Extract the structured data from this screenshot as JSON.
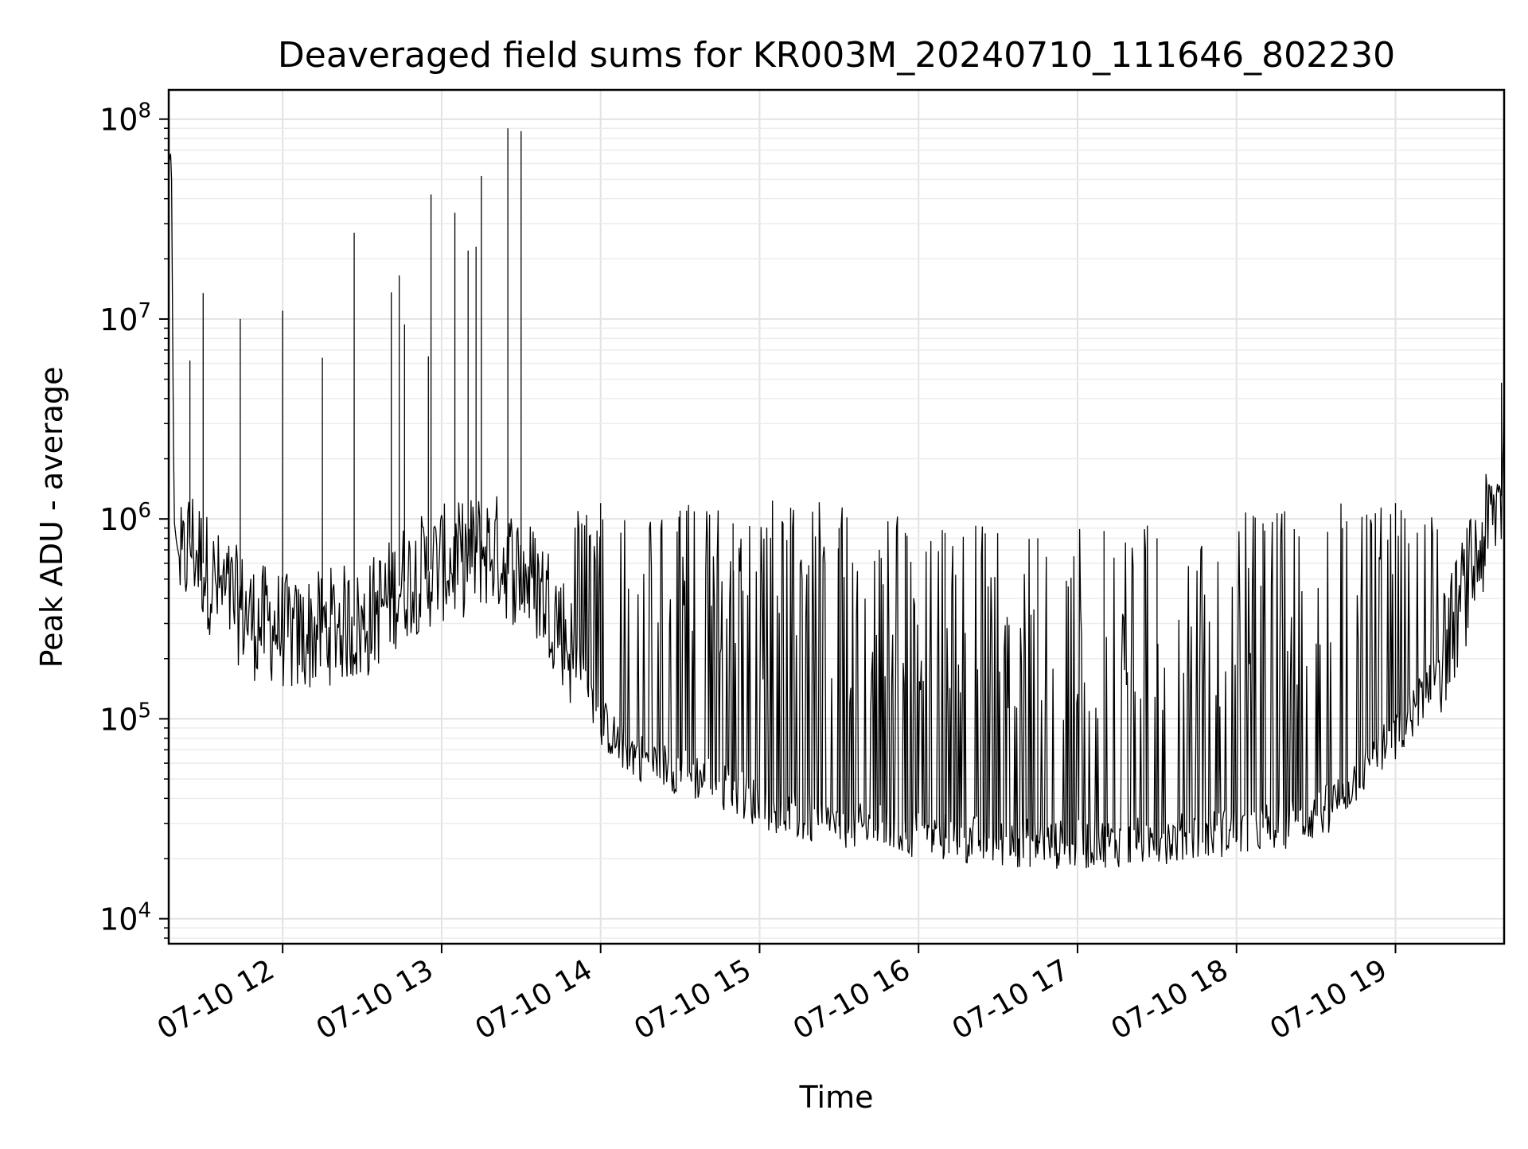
{
  "chart_data": {
    "type": "line",
    "title": "Deaveraged field sums for KR003M_20240710_111646_802230",
    "xlabel": "Time",
    "ylabel": "Peak ADU - average",
    "yscale": "log",
    "ylim": [
      7500,
      140000000
    ],
    "xlim": [
      "2024-07-10 11:17",
      "2024-07-10 19:41"
    ],
    "grid": true,
    "x_ticks": [
      {
        "x": "2024-07-10 12:00",
        "label": "07-10 12"
      },
      {
        "x": "2024-07-10 13:00",
        "label": "07-10 13"
      },
      {
        "x": "2024-07-10 14:00",
        "label": "07-10 14"
      },
      {
        "x": "2024-07-10 15:00",
        "label": "07-10 15"
      },
      {
        "x": "2024-07-10 16:00",
        "label": "07-10 16"
      },
      {
        "x": "2024-07-10 17:00",
        "label": "07-10 17"
      },
      {
        "x": "2024-07-10 18:00",
        "label": "07-10 18"
      },
      {
        "x": "2024-07-10 19:00",
        "label": "07-10 19"
      }
    ],
    "y_ticks": [
      {
        "y": 10000,
        "mantissa": "10",
        "exponent": "4"
      },
      {
        "y": 100000,
        "mantissa": "10",
        "exponent": "5"
      },
      {
        "y": 1000000,
        "mantissa": "10",
        "exponent": "6"
      },
      {
        "y": 10000000,
        "mantissa": "10",
        "exponent": "7"
      },
      {
        "y": 100000000,
        "mantissa": "10",
        "exponent": "8"
      }
    ],
    "series": [
      {
        "color": "#000000",
        "x": [
          "2024-07-10 11:17",
          "2024-07-10 11:18",
          "2024-07-10 11:19",
          "2024-07-10 11:20",
          "2024-07-10 11:22",
          "2024-07-10 11:25",
          "2024-07-10 11:30",
          "2024-07-10 11:35",
          "2024-07-10 11:40",
          "2024-07-10 11:45",
          "2024-07-10 11:50",
          "2024-07-10 11:55",
          "2024-07-10 12:00",
          "2024-07-10 12:05",
          "2024-07-10 12:10",
          "2024-07-10 12:15",
          "2024-07-10 12:20",
          "2024-07-10 12:25",
          "2024-07-10 12:30",
          "2024-07-10 12:35",
          "2024-07-10 12:40",
          "2024-07-10 12:45",
          "2024-07-10 12:50",
          "2024-07-10 12:55",
          "2024-07-10 13:00",
          "2024-07-10 13:05",
          "2024-07-10 13:10",
          "2024-07-10 13:15",
          "2024-07-10 13:20",
          "2024-07-10 13:25",
          "2024-07-10 13:30",
          "2024-07-10 13:35",
          "2024-07-10 13:40",
          "2024-07-10 13:45",
          "2024-07-10 13:50",
          "2024-07-10 13:55",
          "2024-07-10 14:00",
          "2024-07-10 14:05",
          "2024-07-10 14:10",
          "2024-07-10 14:15",
          "2024-07-10 14:20",
          "2024-07-10 14:25",
          "2024-07-10 14:30",
          "2024-07-10 14:35",
          "2024-07-10 14:40",
          "2024-07-10 14:45",
          "2024-07-10 14:50",
          "2024-07-10 14:55",
          "2024-07-10 15:00",
          "2024-07-10 15:05",
          "2024-07-10 15:10",
          "2024-07-10 15:15",
          "2024-07-10 15:20",
          "2024-07-10 15:25",
          "2024-07-10 15:30",
          "2024-07-10 15:35",
          "2024-07-10 15:40",
          "2024-07-10 15:45",
          "2024-07-10 15:50",
          "2024-07-10 15:55",
          "2024-07-10 16:00",
          "2024-07-10 16:05",
          "2024-07-10 16:10",
          "2024-07-10 16:15",
          "2024-07-10 16:20",
          "2024-07-10 16:25",
          "2024-07-10 16:30",
          "2024-07-10 16:35",
          "2024-07-10 16:40",
          "2024-07-10 16:45",
          "2024-07-10 16:50",
          "2024-07-10 16:55",
          "2024-07-10 17:00",
          "2024-07-10 17:05",
          "2024-07-10 17:10",
          "2024-07-10 17:15",
          "2024-07-10 17:20",
          "2024-07-10 17:25",
          "2024-07-10 17:30",
          "2024-07-10 17:35",
          "2024-07-10 17:40",
          "2024-07-10 17:45",
          "2024-07-10 17:50",
          "2024-07-10 17:55",
          "2024-07-10 18:00",
          "2024-07-10 18:05",
          "2024-07-10 18:10",
          "2024-07-10 18:15",
          "2024-07-10 18:20",
          "2024-07-10 18:25",
          "2024-07-10 18:30",
          "2024-07-10 18:35",
          "2024-07-10 18:40",
          "2024-07-10 18:45",
          "2024-07-10 18:50",
          "2024-07-10 18:55",
          "2024-07-10 19:00",
          "2024-07-10 19:05",
          "2024-07-10 19:10",
          "2024-07-10 19:15",
          "2024-07-10 19:20",
          "2024-07-10 19:25",
          "2024-07-10 19:30",
          "2024-07-10 19:35",
          "2024-07-10 19:40",
          "2024-07-10 19:41"
        ],
        "y": [
          60000000,
          70000000,
          1000000,
          750000,
          550000,
          800000,
          600000,
          450000,
          400000,
          350000,
          300000,
          300000,
          280000,
          250000,
          270000,
          280000,
          300000,
          300000,
          280000,
          350000,
          400000,
          480000,
          520000,
          550000,
          600000,
          600000,
          650000,
          700000,
          700000,
          600000,
          550000,
          480000,
          400000,
          300000,
          200000,
          150000,
          100000,
          80000,
          70000,
          65000,
          60000,
          58000,
          55000,
          52000,
          50000,
          47000,
          44000,
          40000,
          38000,
          36000,
          34000,
          32000,
          31000,
          30000,
          29000,
          29000,
          28000,
          28000,
          27000,
          27000,
          26000,
          26000,
          25500,
          25000,
          25000,
          24500,
          24000,
          24000,
          24000,
          24000,
          23500,
          23500,
          23500,
          23500,
          24000,
          24000,
          24000,
          24500,
          25000,
          25000,
          25500,
          26000,
          26500,
          27000,
          27500,
          28000,
          28500,
          29000,
          30000,
          31000,
          33000,
          36000,
          42000,
          50000,
          60000,
          70000,
          80000,
          100000,
          130000,
          180000,
          250000,
          400000,
          600000,
          900000,
          1300000,
          4800000
        ],
        "spikes": [
          {
            "x": "2024-07-10 11:25",
            "y": 6200000
          },
          {
            "x": "2024-07-10 11:30",
            "y": 13500000
          },
          {
            "x": "2024-07-10 11:44",
            "y": 10000000
          },
          {
            "x": "2024-07-10 12:00",
            "y": 11000000
          },
          {
            "x": "2024-07-10 12:15",
            "y": 6400000
          },
          {
            "x": "2024-07-10 12:27",
            "y": 27000000
          },
          {
            "x": "2024-07-10 12:41",
            "y": 13600000
          },
          {
            "x": "2024-07-10 12:44",
            "y": 16500000
          },
          {
            "x": "2024-07-10 12:46",
            "y": 9400000
          },
          {
            "x": "2024-07-10 12:55",
            "y": 6500000
          },
          {
            "x": "2024-07-10 12:56",
            "y": 42000000
          },
          {
            "x": "2024-07-10 13:05",
            "y": 34000000
          },
          {
            "x": "2024-07-10 13:10",
            "y": 22000000
          },
          {
            "x": "2024-07-10 13:13",
            "y": 23000000
          },
          {
            "x": "2024-07-10 13:15",
            "y": 52000000
          },
          {
            "x": "2024-07-10 13:25",
            "y": 90000000
          },
          {
            "x": "2024-07-10 13:30",
            "y": 87000000
          },
          {
            "x": "2024-07-10 14:00",
            "y": 1200000
          },
          {
            "x": "2024-07-10 14:30",
            "y": 1100000
          },
          {
            "x": "2024-07-10 14:50",
            "y": 950000
          },
          {
            "x": "2024-07-10 15:30",
            "y": 900000
          },
          {
            "x": "2024-07-10 15:55",
            "y": 850000
          },
          {
            "x": "2024-07-10 16:10",
            "y": 850000
          },
          {
            "x": "2024-07-10 16:45",
            "y": 800000
          },
          {
            "x": "2024-07-10 17:10",
            "y": 870000
          },
          {
            "x": "2024-07-10 17:30",
            "y": 800000
          },
          {
            "x": "2024-07-10 18:10",
            "y": 950000
          },
          {
            "x": "2024-07-10 18:40",
            "y": 900000
          },
          {
            "x": "2024-07-10 19:00",
            "y": 1200000
          },
          {
            "x": "2024-07-10 19:40",
            "y": 4800000
          }
        ]
      }
    ]
  }
}
